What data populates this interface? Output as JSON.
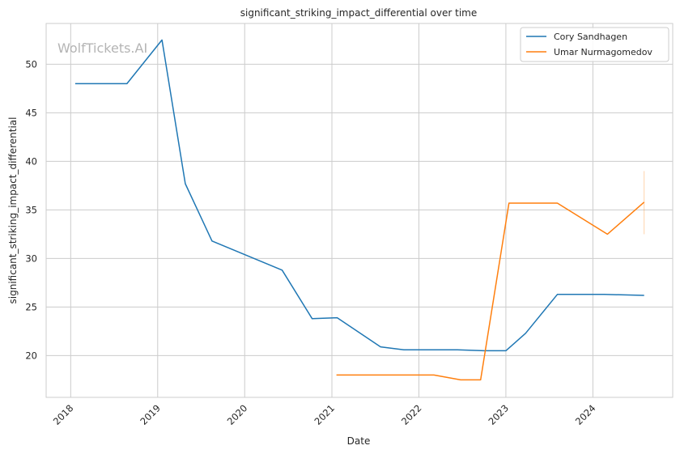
{
  "chart_data": {
    "type": "line",
    "title": "significant_striking_impact_differential over time",
    "xlabel": "Date",
    "ylabel": "significant_striking_impact_differential",
    "watermark": "WolfTickets.AI",
    "x_ticks": [
      "2018",
      "2019",
      "2020",
      "2021",
      "2022",
      "2023",
      "2024"
    ],
    "y_ticks": [
      20,
      25,
      30,
      35,
      40,
      45,
      50
    ],
    "xlim": [
      "2017-09-20",
      "2024-12-01"
    ],
    "ylim": [
      15.7,
      54.2
    ],
    "grid": true,
    "legend_position": "top-right",
    "series": [
      {
        "name": "Cory Sandhagen",
        "color": "#1f77b4",
        "points": [
          [
            "2018-01-20",
            48.0
          ],
          [
            "2018-08-25",
            48.0
          ],
          [
            "2019-01-19",
            52.5
          ],
          [
            "2019-04-27",
            37.7
          ],
          [
            "2019-08-17",
            31.8
          ],
          [
            "2020-06-06",
            28.8
          ],
          [
            "2020-10-10",
            23.8
          ],
          [
            "2021-01-23",
            23.9
          ],
          [
            "2021-07-24",
            20.9
          ],
          [
            "2021-10-30",
            20.6
          ],
          [
            "2022-06-11",
            20.6
          ],
          [
            "2022-10-01",
            20.5
          ],
          [
            "2023-01-01",
            20.5
          ],
          [
            "2023-03-25",
            22.3
          ],
          [
            "2023-08-05",
            26.3
          ],
          [
            "2024-02-17",
            26.3
          ],
          [
            "2024-08-03",
            26.2
          ]
        ]
      },
      {
        "name": "Umar Nurmagomedov",
        "color": "#ff7f0e",
        "points": [
          [
            "2021-01-20",
            18.0
          ],
          [
            "2022-03-05",
            18.0
          ],
          [
            "2022-06-25",
            17.5
          ],
          [
            "2022-09-17",
            17.5
          ],
          [
            "2023-01-14",
            35.7
          ],
          [
            "2023-08-05",
            35.7
          ],
          [
            "2024-03-02",
            32.5
          ],
          [
            "2024-08-03",
            35.8
          ]
        ],
        "error_bar": {
          "x": "2024-08-03",
          "low": 32.5,
          "high": 39.0
        }
      }
    ]
  },
  "colors": {
    "grid": "#cccccc",
    "axes_edge": "#cccccc",
    "text": "#262626",
    "watermark": "#b4b4b4"
  }
}
